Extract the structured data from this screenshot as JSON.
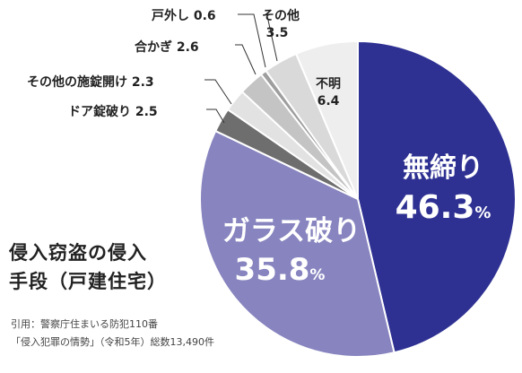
{
  "chart_data": {
    "type": "pie",
    "title_lines": [
      "侵入窃盗の侵入",
      "手段（戸建住宅）"
    ],
    "unit": "%",
    "slices": [
      {
        "label": "無締り",
        "value": 46.3,
        "value_text": "46.3",
        "color": "#2e3192",
        "label_color": "#ffffff"
      },
      {
        "label": "ガラス破り",
        "value": 35.8,
        "value_text": "35.8",
        "color": "#8784bf",
        "label_color": "#ffffff"
      },
      {
        "label": "ドア錠破り",
        "value": 2.5,
        "value_text": "2.5",
        "color": "#6e6e6e",
        "label_color": "#222222"
      },
      {
        "label": "その他の施錠開け",
        "value": 2.3,
        "value_text": "2.3",
        "color": "#e2e2e2",
        "label_color": "#222222"
      },
      {
        "label": "合かぎ",
        "value": 2.6,
        "value_text": "2.6",
        "color": "#c4c4c4",
        "label_color": "#222222"
      },
      {
        "label": "戸外し",
        "value": 0.6,
        "value_text": "0.6",
        "color": "#9e9e9e",
        "label_color": "#222222"
      },
      {
        "label": "その他",
        "value": 3.5,
        "value_text": "3.5",
        "color": "#d9d9d9",
        "label_color": "#222222"
      },
      {
        "label": "不明",
        "value": 6.4,
        "value_text": "6.4",
        "color": "#eeeeee",
        "label_color": "#222222"
      }
    ]
  },
  "source_lines": [
    "引用：警察庁住まいる防犯110番",
    "「侵入犯罪の情勢」（令和5年）総数13,490件"
  ]
}
